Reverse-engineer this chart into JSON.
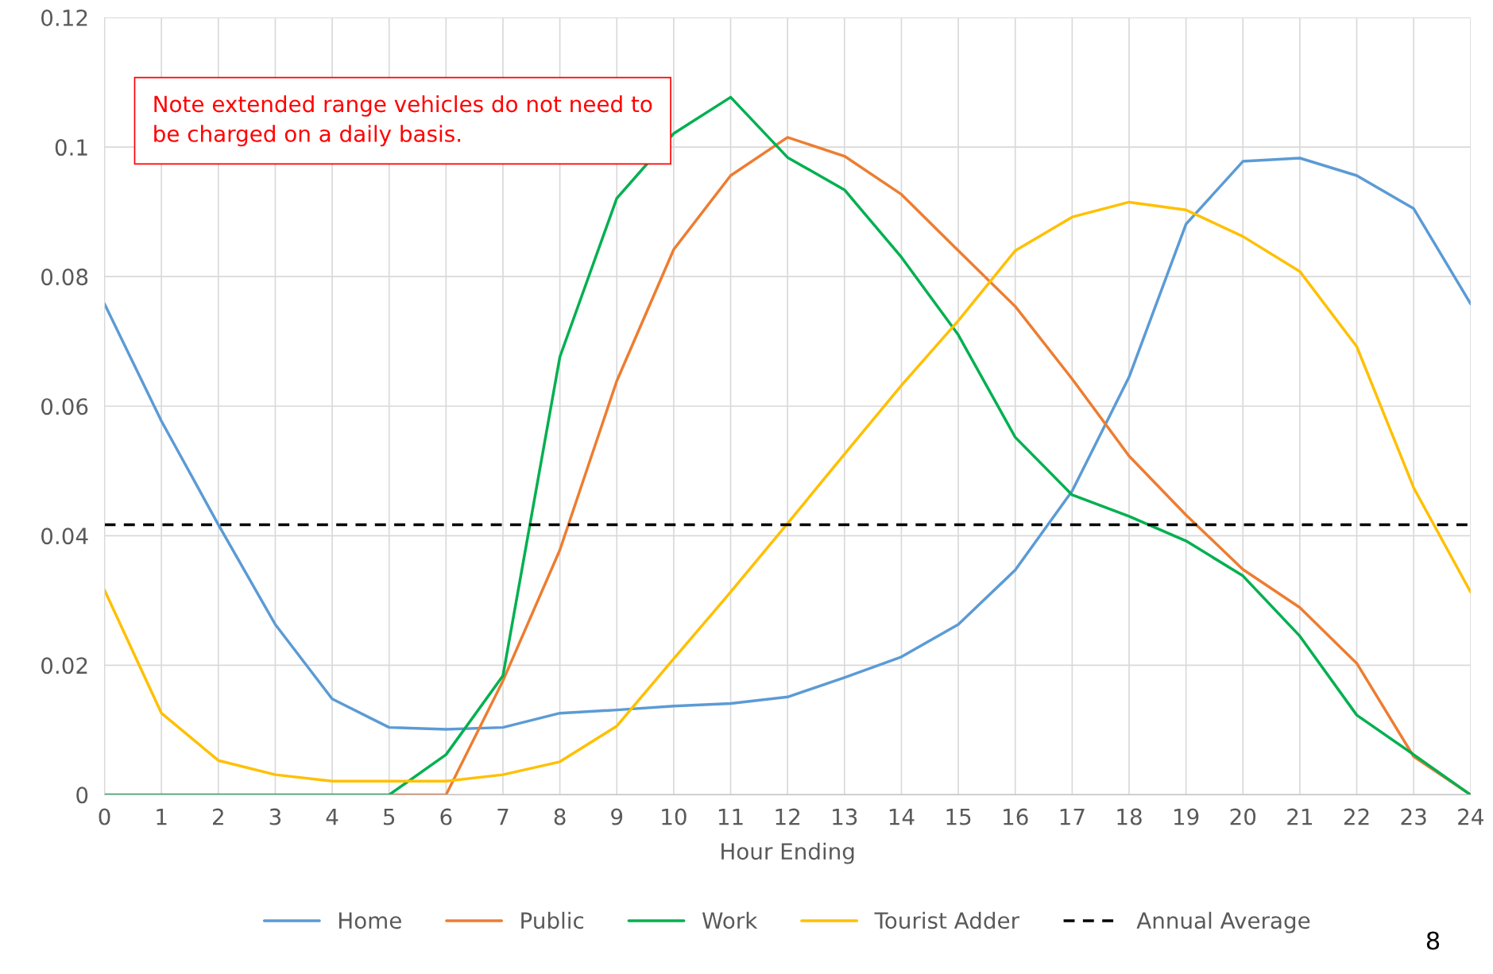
{
  "chart_data": {
    "type": "line",
    "xlabel": "Hour Ending",
    "x": [
      0,
      1,
      2,
      3,
      4,
      5,
      6,
      7,
      8,
      9,
      10,
      11,
      12,
      13,
      14,
      15,
      16,
      17,
      18,
      19,
      20,
      21,
      22,
      23,
      24
    ],
    "series": [
      {
        "name": "Home",
        "color": "#5b9bd5",
        "values": [
          0.0758,
          0.0577,
          0.0417,
          0.0263,
          0.0148,
          0.0104,
          0.0101,
          0.0104,
          0.0126,
          0.0131,
          0.0137,
          0.0141,
          0.0151,
          0.0181,
          0.0213,
          0.0263,
          0.0347,
          0.0469,
          0.0645,
          0.0881,
          0.0978,
          0.0983,
          0.0956,
          0.0905,
          0.0758
        ]
      },
      {
        "name": "Public",
        "color": "#ed7d31",
        "values": [
          null,
          null,
          null,
          null,
          null,
          0,
          0,
          0.0176,
          0.0378,
          0.0639,
          0.0842,
          0.0956,
          0.1015,
          0.0986,
          0.0927,
          0.084,
          0.0754,
          0.0642,
          0.0523,
          0.0432,
          0.0348,
          0.0289,
          0.0203,
          0.0059,
          0
        ]
      },
      {
        "name": "Work",
        "color": "#00b050",
        "values": [
          0,
          0,
          0,
          0,
          0,
          0,
          0.0062,
          0.0184,
          0.0676,
          0.0921,
          0.1021,
          0.1077,
          0.0984,
          0.0934,
          0.083,
          0.071,
          0.0552,
          0.0463,
          0.043,
          0.0392,
          0.0338,
          0.0245,
          0.0123,
          0.0062,
          0
        ]
      },
      {
        "name": "Tourist Adder",
        "color": "#ffc000",
        "values": [
          0.0316,
          0.0126,
          0.0053,
          0.0031,
          0.0021,
          0.0021,
          0.0021,
          0.0031,
          0.0051,
          0.0106,
          0.021,
          0.0313,
          0.0419,
          0.0526,
          0.0632,
          0.0732,
          0.084,
          0.0892,
          0.0915,
          0.0903,
          0.0862,
          0.0808,
          0.0692,
          0.0474,
          0.0313
        ]
      }
    ],
    "ref_lines": [
      {
        "axis": "y",
        "value": 0.0417,
        "label": "Annual Average",
        "color": "#000000",
        "line_style": "dashed"
      }
    ],
    "xlim": [
      0,
      24
    ],
    "xticks": [
      0,
      1,
      2,
      3,
      4,
      5,
      6,
      7,
      8,
      9,
      10,
      11,
      12,
      13,
      14,
      15,
      16,
      17,
      18,
      19,
      20,
      21,
      22,
      23,
      24
    ],
    "ylim": [
      0,
      0.12
    ],
    "yticks": [
      0,
      0.02,
      0.04,
      0.06,
      0.08,
      0.1,
      0.12
    ],
    "grid": true,
    "legend": "bottom",
    "line_style": "solid",
    "marker": "none",
    "annotations": [
      "Note extended range vehicles do not need to be charged on a daily basis.",
      "8"
    ]
  }
}
